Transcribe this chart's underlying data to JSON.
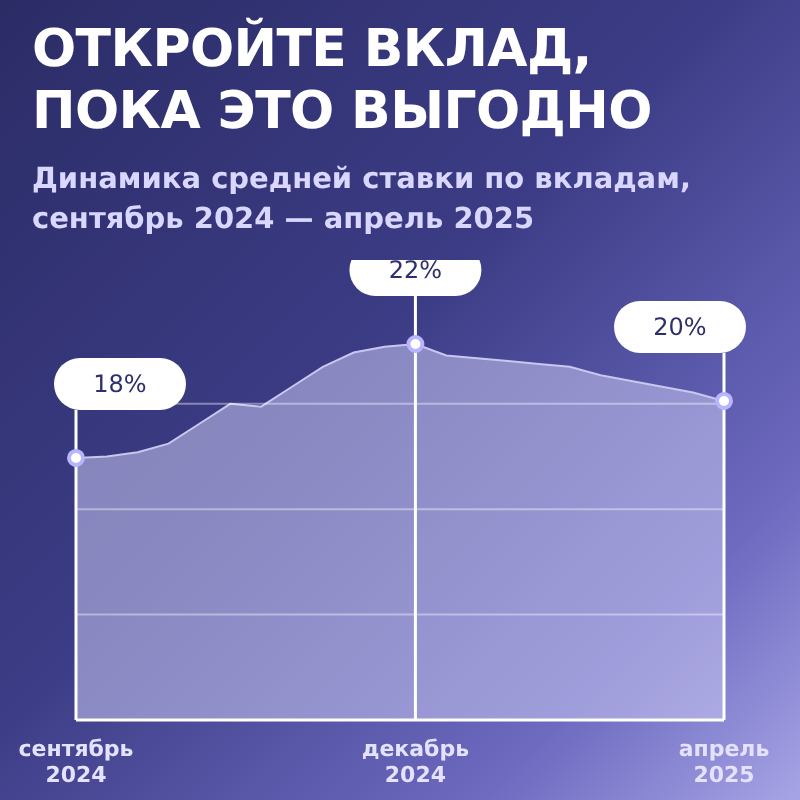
{
  "chart_data": {
    "type": "area",
    "title": "ОТКРОЙТЕ ВКЛАД,\nПОКА ЭТО ВЫГОДНО",
    "subtitle": "Динамика средней ставки по вкладам, сентябрь 2024 — апрель 2025",
    "categories": [
      "сентябрь 2024",
      null,
      null,
      null,
      null,
      null,
      null,
      null,
      null,
      null,
      null,
      "декабрь 2024",
      null,
      null,
      null,
      null,
      null,
      null,
      null,
      null,
      null,
      "апрель 2025"
    ],
    "series": [
      {
        "color": "#c9c6f0",
        "values": [
          18,
          18.05,
          18.2,
          18.5,
          19.2,
          19.9,
          19.8,
          20.5,
          21.2,
          21.7,
          21.9,
          22,
          21.6,
          21.5,
          21.4,
          21.3,
          21.2,
          20.9,
          20.7,
          20.5,
          20.3,
          20
        ],
        "value_labels": [
          "18%",
          null,
          null,
          null,
          null,
          null,
          null,
          null,
          null,
          null,
          null,
          "22%",
          null,
          null,
          null,
          null,
          null,
          null,
          null,
          null,
          null,
          "20%"
        ]
      }
    ],
    "ylim": [
      8.8,
      22
    ],
    "yticks": [
      {
        "value": 12.5,
        "label": null
      },
      {
        "value": 16.2,
        "label": null
      },
      {
        "value": 19.9,
        "label": null
      }
    ],
    "grid": "y",
    "tick_labels": "x",
    "legend": false
  }
}
